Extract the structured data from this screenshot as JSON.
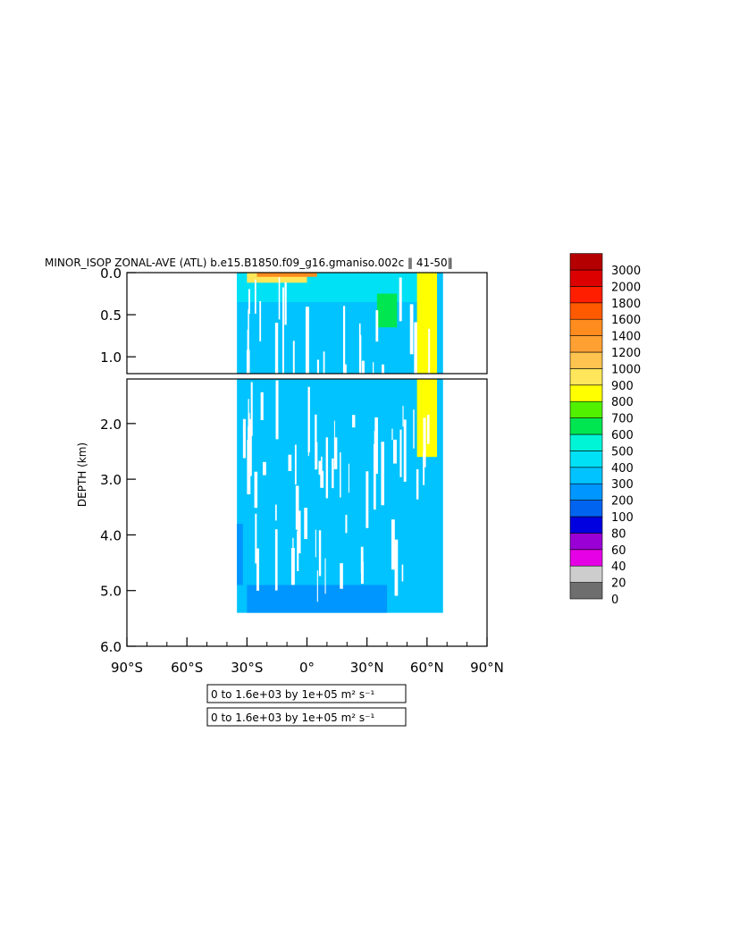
{
  "chart_data": {
    "type": "heatmap",
    "title": "MINOR_ISOP ZONAL-AVE (ATL) b.e15.B1850.f09_g16.gmaniso.002c ‖ 41-50‖",
    "ylabel": "DEPTH (km)",
    "xlabel": "",
    "x_ticks": [
      "90°S",
      "60°S",
      "30°S",
      "0°",
      "30°N",
      "60°N",
      "90°N"
    ],
    "x_tick_values": [
      -90,
      -60,
      -30,
      0,
      30,
      60,
      90
    ],
    "xlim": [
      -90,
      90
    ],
    "upper_panel": {
      "ylim": [
        0,
        1.2
      ],
      "y_ticks": [
        "0.0",
        "0.5",
        "1.0"
      ],
      "y_tick_values": [
        0,
        0.5,
        1.0
      ]
    },
    "lower_panel": {
      "ylim": [
        1.2,
        6.0
      ],
      "y_ticks": [
        "2.0",
        "3.0",
        "4.0",
        "5.0",
        "6.0"
      ],
      "y_tick_values": [
        2.0,
        3.0,
        4.0,
        5.0,
        6.0
      ]
    },
    "colorbar": {
      "levels": [
        "0",
        "20",
        "40",
        "60",
        "80",
        "100",
        "200",
        "300",
        "400",
        "500",
        "600",
        "700",
        "800",
        "900",
        "1000",
        "1200",
        "1400",
        "1600",
        "1800",
        "2000",
        "3000"
      ],
      "colors": [
        "#6e6e6e",
        "#cdcdcd",
        "#e600e6",
        "#9a00d6",
        "#0000e0",
        "#0064f0",
        "#0096ff",
        "#00c3ff",
        "#00e1f5",
        "#00f5d7",
        "#00e650",
        "#50f000",
        "#ffff00",
        "#ffe65a",
        "#ffc350",
        "#ffa032",
        "#ff8c1e",
        "#ff5a00",
        "#ff1e00",
        "#dc0000",
        "#b40000"
      ]
    },
    "info_boxes": [
      "0 to 1.6e+03 by 1e+05 m² s⁻¹",
      "0 to 1.6e+03 by 1e+05 m² s⁻¹"
    ],
    "field_regions": [
      {
        "name": "background",
        "lat": [
          -35,
          68
        ],
        "depth": [
          0,
          5.4
        ],
        "value": 350
      },
      {
        "name": "upper-ocean",
        "lat": [
          -35,
          65
        ],
        "depth": [
          0,
          0.35
        ],
        "value": 450
      },
      {
        "name": "surface-high",
        "lat": [
          -30,
          0
        ],
        "depth": [
          0,
          0.12
        ],
        "value": 900
      },
      {
        "name": "surface-orange",
        "lat": [
          -25,
          5
        ],
        "depth": [
          0,
          0.05
        ],
        "value": 1400
      },
      {
        "name": "subpolar-band",
        "lat": [
          55,
          65
        ],
        "depth": [
          0,
          2.6
        ],
        "value": 850
      },
      {
        "name": "mid-green",
        "lat": [
          35,
          45
        ],
        "depth": [
          0.25,
          0.65
        ],
        "value": 650
      },
      {
        "name": "deep-edge",
        "lat": [
          -35,
          -32
        ],
        "depth": [
          3.8,
          4.9
        ],
        "value": 250
      },
      {
        "name": "bottom",
        "lat": [
          -30,
          40
        ],
        "depth": [
          4.9,
          5.4
        ],
        "value": 250
      }
    ]
  }
}
